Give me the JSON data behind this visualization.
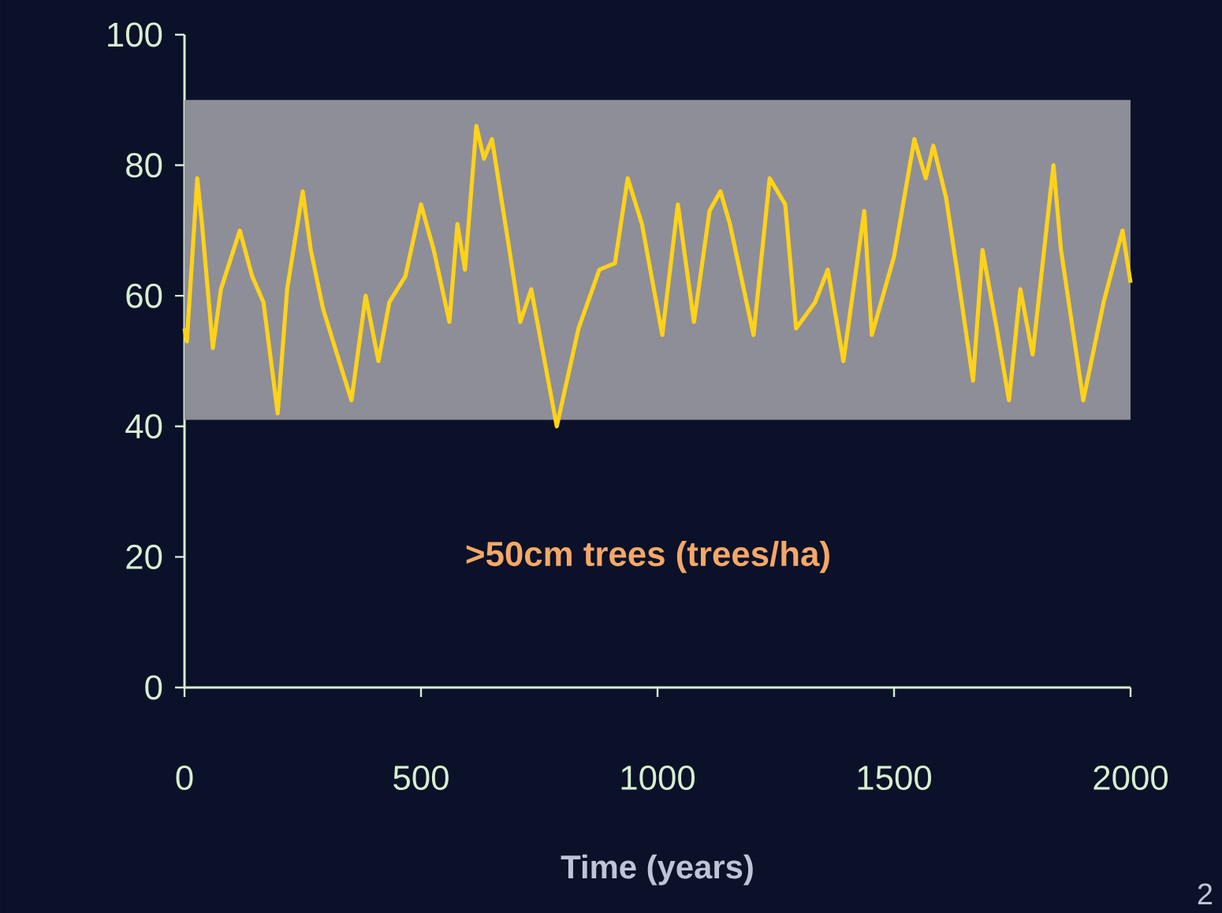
{
  "chart_data": {
    "type": "line",
    "xlabel": "Time (years)",
    "x": [
      0,
      5,
      27,
      37,
      60,
      77,
      117,
      143,
      167,
      197,
      217,
      250,
      267,
      293,
      327,
      353,
      383,
      410,
      433,
      467,
      500,
      527,
      560,
      577,
      593,
      617,
      633,
      650,
      687,
      710,
      733,
      787,
      833,
      877,
      910,
      937,
      967,
      1010,
      1043,
      1077,
      1110,
      1133,
      1153,
      1203,
      1237,
      1270,
      1293,
      1333,
      1360,
      1393,
      1437,
      1453,
      1500,
      1543,
      1567,
      1583,
      1610,
      1633,
      1667,
      1687,
      1717,
      1743,
      1767,
      1793,
      1837,
      1853,
      1900,
      1943,
      1983,
      2000
    ],
    "series": [
      {
        "color": "#ffd21a",
        "values": [
          55,
          53,
          78,
          71,
          52,
          61,
          70,
          63,
          59,
          42,
          61,
          76,
          67,
          58,
          50,
          44,
          60,
          50,
          59,
          63,
          74,
          67,
          56,
          71,
          64,
          86,
          81,
          84,
          67,
          56,
          61,
          40,
          55,
          64,
          65,
          78,
          71,
          54,
          74,
          56,
          73,
          76,
          71,
          54,
          78,
          74,
          55,
          59,
          64,
          50,
          73,
          54,
          66,
          84,
          78,
          83,
          75,
          64,
          47,
          67,
          55,
          44,
          61,
          51,
          80,
          67,
          44,
          59,
          70,
          62
        ]
      }
    ],
    "xlim": [
      0,
      2000
    ],
    "ylim": [
      0,
      100
    ],
    "xticks": [
      0,
      500,
      1000,
      1500,
      2000
    ],
    "yticks": [
      0,
      20,
      40,
      60,
      80,
      100
    ],
    "bands": [
      {
        "axis": "y",
        "from": 41,
        "to": 90,
        "color": "#8e8e98"
      }
    ],
    "annotations": [
      ">50cm trees (trees/ha)",
      "2"
    ],
    "grid": false,
    "marker": "none",
    "line_style": "solid"
  }
}
